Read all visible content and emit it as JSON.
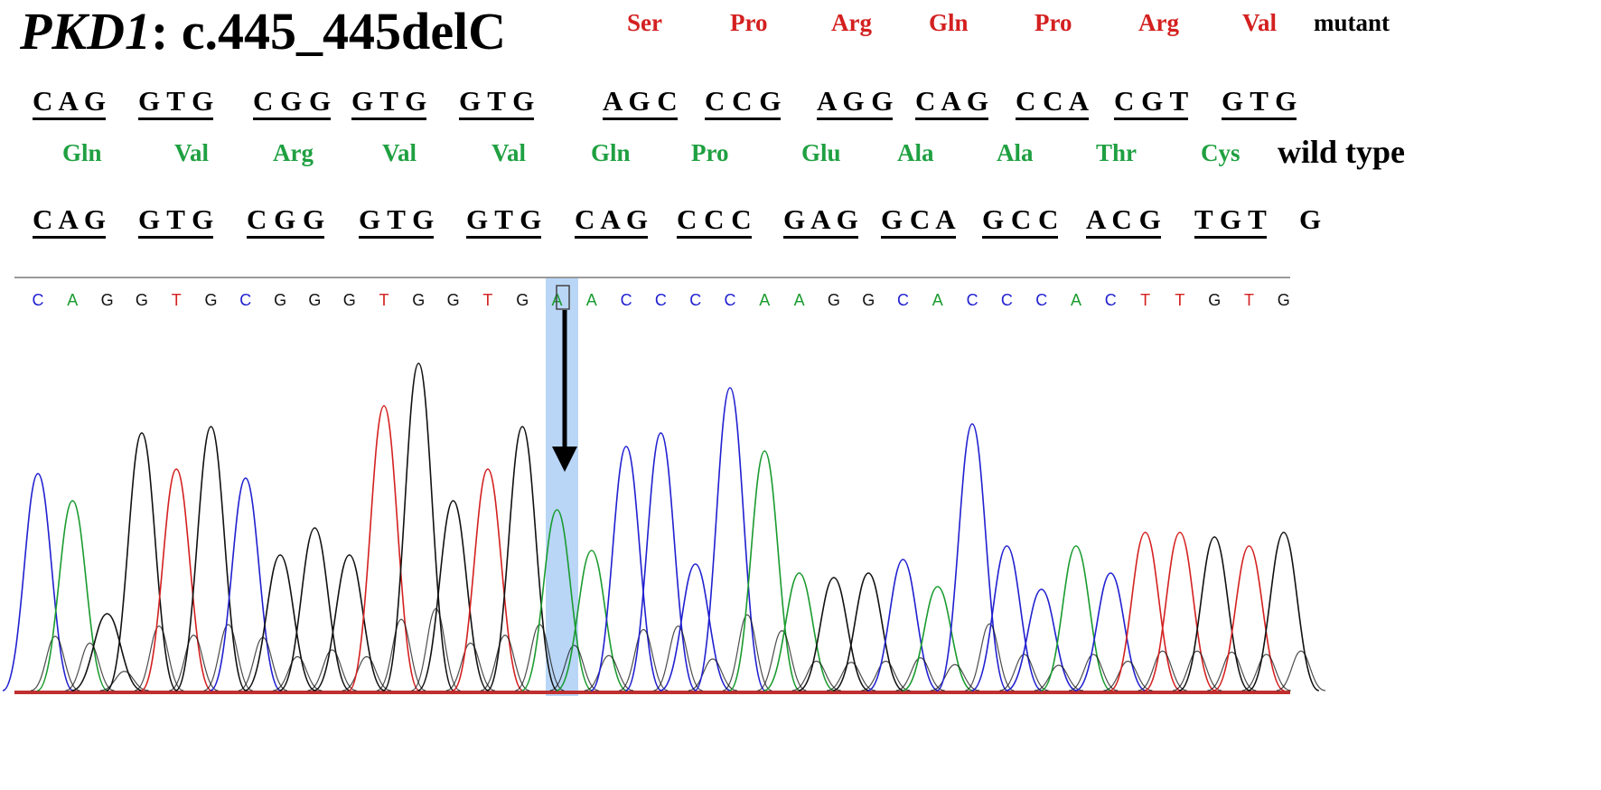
{
  "title": {
    "gene": "PKD1",
    "mutation": ": c.445_445delC"
  },
  "mutant_label": "mutant",
  "wild_type_label": "wild type",
  "colors": {
    "A": "#1a9b2f",
    "C": "#2020d0",
    "G": "#111111",
    "T": "#d42020",
    "mutant_aa": "#d42020",
    "wild_type_aa": "#1fa041",
    "highlight": "#a8ccf5"
  },
  "mutant_aa": [
    "Ser",
    "Pro",
    "Arg",
    "Gln",
    "Pro",
    "Arg",
    "Val"
  ],
  "mutant_codons": [
    "C A G",
    "G T G",
    "C G G",
    "G T G",
    "G T G",
    "A G C",
    "C C G",
    "A G G",
    "C A G",
    "C C A",
    "C G T",
    "G T G"
  ],
  "wild_type_aa": [
    "Gln",
    "Val",
    "Arg",
    "Val",
    "Val",
    "Gln",
    "Pro",
    "Glu",
    "Ala",
    "Ala",
    "Thr",
    "Cys"
  ],
  "wild_type_codons": [
    "C A G",
    "G T G",
    "C G G",
    "G T G",
    "G T G",
    "C A G",
    "C C C",
    "G A G",
    "G C A",
    "G C C",
    "A C G",
    "T G T",
    "G"
  ],
  "called_bases": [
    "C",
    "A",
    "G",
    "G",
    "T",
    "G",
    "C",
    "G",
    "G",
    "G",
    "T",
    "G",
    "G",
    "T",
    "G",
    "A",
    "A",
    "C",
    "C",
    "C",
    "C",
    "A",
    "A",
    "G",
    "G",
    "C",
    "A",
    "C",
    "C",
    "C",
    "A",
    "C",
    "T",
    "T",
    "G",
    "T",
    "G"
  ],
  "deletion_site_index": 15,
  "arrow_icon": "down-arrow-icon"
}
